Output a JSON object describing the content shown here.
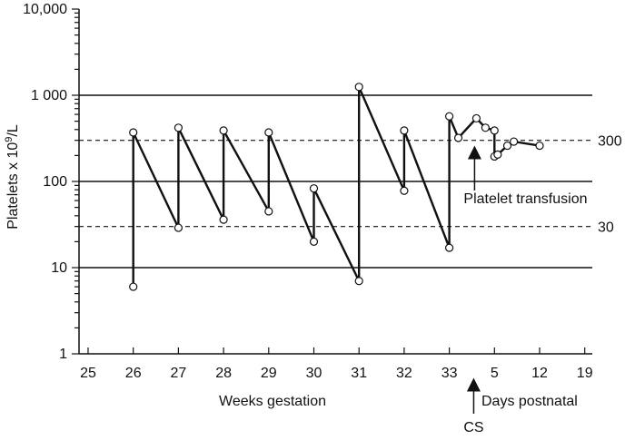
{
  "chart_data": {
    "type": "line",
    "yscale": "log",
    "ylim": [
      1,
      10000
    ],
    "yticks": [
      {
        "value": 10000,
        "label": "10,000"
      },
      {
        "value": 1000,
        "label": "1 000"
      },
      {
        "value": 100,
        "label": "100"
      },
      {
        "value": 10,
        "label": "10"
      },
      {
        "value": 1,
        "label": "1"
      }
    ],
    "ylabel_main": "Platelets x 10",
    "ylabel_sup": "9",
    "ylabel_tail": "/L",
    "xticks": [
      "25",
      "26",
      "27",
      "28",
      "29",
      "30",
      "31",
      "32",
      "33",
      "5",
      "12",
      "19"
    ],
    "xlabel_left": "Weeks gestation",
    "xlabel_right": "Days postnatal",
    "reference_lines": [
      {
        "value": 300,
        "label": "300"
      },
      {
        "value": 30,
        "label": "30"
      }
    ],
    "gridlines": [
      1000,
      100,
      10
    ],
    "series": [
      {
        "points": [
          {
            "x": "26",
            "y": 6
          },
          {
            "x": "26",
            "y": 370
          },
          {
            "x": "27",
            "y": 29
          },
          {
            "x": "27",
            "y": 420
          },
          {
            "x": "28",
            "y": 36
          },
          {
            "x": "28",
            "y": 390
          },
          {
            "x": "29",
            "y": 45
          },
          {
            "x": "29",
            "y": 370
          },
          {
            "x": "30",
            "y": 20
          },
          {
            "x": "30",
            "y": 83
          },
          {
            "x": "31",
            "y": 7
          },
          {
            "x": "31",
            "y": 1250
          },
          {
            "x": "32",
            "y": 78
          },
          {
            "x": "32",
            "y": 390
          },
          {
            "x": "33",
            "y": 17
          },
          {
            "x": "33",
            "y": 570
          },
          {
            "x": "1 (postnatal day, approx.)",
            "y": 320
          },
          {
            "x": "3 (postnatal day, approx.)",
            "y": 540
          },
          {
            "x": "4 (postnatal day, approx.)",
            "y": 420
          },
          {
            "x": "5",
            "y": 390
          },
          {
            "x": "5",
            "y": 195
          },
          {
            "x": "5.5 (postnatal day, approx.)",
            "y": 205
          },
          {
            "x": "7 (postnatal day, approx.)",
            "y": 260
          },
          {
            "x": "8 (postnatal day, approx.)",
            "y": 290
          },
          {
            "x": "12",
            "y": 260
          }
        ]
      }
    ],
    "annotations": [
      {
        "text": "Platelet transfusion",
        "x": "3 (postnatal day, approx.)"
      },
      {
        "text": "CS",
        "x": "33.5 (between 33 and day 5, approx.)"
      }
    ],
    "grid": false
  }
}
